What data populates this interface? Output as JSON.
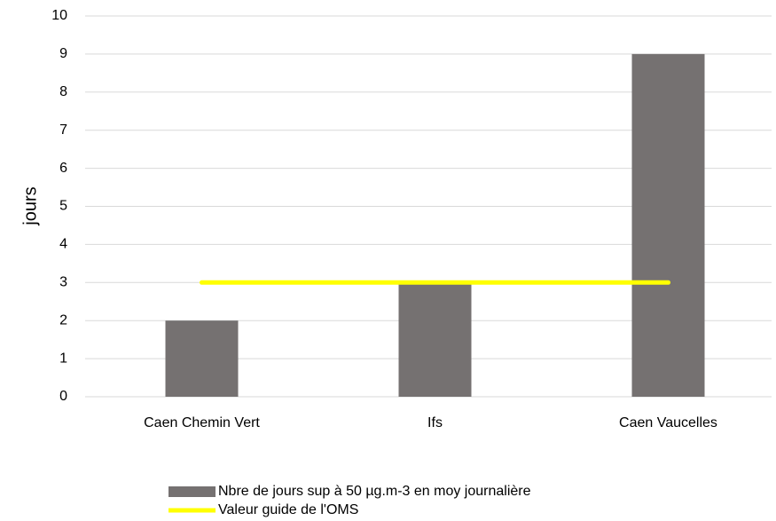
{
  "chart_data": {
    "type": "bar",
    "categories": [
      "Caen Chemin Vert",
      "Ifs",
      "Caen Vaucelles"
    ],
    "y_label": "jours",
    "series": [
      {
        "name": "Nbre de jours sup à 50 µg.m-3 en moy journalière",
        "type": "bar",
        "color": "#757171",
        "values": [
          2,
          3,
          9
        ]
      },
      {
        "name": "Valeur guide de l'OMS",
        "type": "line",
        "color": "#ffff00",
        "values": [
          3,
          3,
          3
        ]
      }
    ],
    "ylim": [
      0,
      10
    ],
    "yticks": [
      0,
      1,
      2,
      3,
      4,
      5,
      6,
      7,
      8,
      9,
      10
    ],
    "grid": true,
    "legend": "bottom"
  }
}
